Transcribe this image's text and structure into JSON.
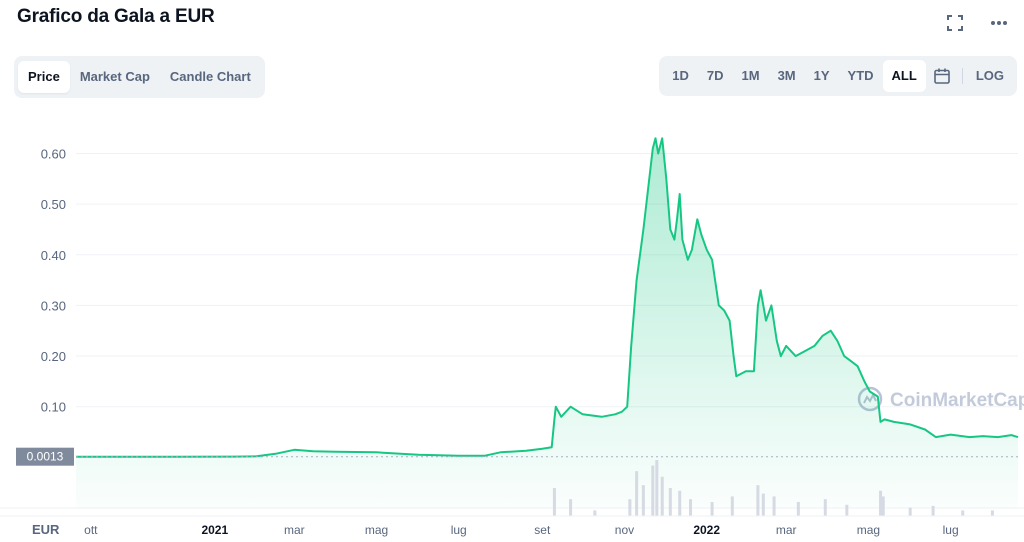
{
  "title": "Grafico da Gala a EUR",
  "icons": {
    "fullscreen": "fullscreen-icon",
    "more": "more-icon",
    "calendar": "calendar-icon"
  },
  "tabs": [
    {
      "label": "Price",
      "active": true
    },
    {
      "label": "Market Cap",
      "active": false
    },
    {
      "label": "Candle Chart",
      "active": false
    }
  ],
  "ranges": [
    {
      "label": "1D",
      "active": false
    },
    {
      "label": "7D",
      "active": false
    },
    {
      "label": "1M",
      "active": false
    },
    {
      "label": "3M",
      "active": false
    },
    {
      "label": "1Y",
      "active": false
    },
    {
      "label": "YTD",
      "active": false
    },
    {
      "label": "ALL",
      "active": true
    }
  ],
  "log_label": "LOG",
  "watermark": "CoinMarketCap",
  "colors": {
    "line": "#16c784",
    "accent": "#3861fb",
    "price_tag": "#808a9d"
  },
  "chart_data": {
    "type": "area",
    "currency_label": "EUR",
    "price_tag": "0.0013",
    "ylim": [
      -0.1,
      0.67
    ],
    "y_ticks": [
      {
        "value": 0.6,
        "label": "0.60"
      },
      {
        "value": 0.5,
        "label": "0.50"
      },
      {
        "value": 0.4,
        "label": "0.40"
      },
      {
        "value": 0.3,
        "label": "0.30"
      },
      {
        "value": 0.2,
        "label": "0.20"
      },
      {
        "value": 0.1,
        "label": "0.10"
      }
    ],
    "xlim": [
      "2020-09-20",
      "2022-08-20"
    ],
    "x_ticks": [
      {
        "date": "2020-10-01",
        "label": "ott",
        "bold": false
      },
      {
        "date": "2021-01-01",
        "label": "2021",
        "bold": true
      },
      {
        "date": "2021-03-01",
        "label": "mar",
        "bold": false
      },
      {
        "date": "2021-05-01",
        "label": "mag",
        "bold": false
      },
      {
        "date": "2021-07-01",
        "label": "lug",
        "bold": false
      },
      {
        "date": "2021-09-01",
        "label": "set",
        "bold": false
      },
      {
        "date": "2021-11-01",
        "label": "nov",
        "bold": false
      },
      {
        "date": "2022-01-01",
        "label": "2022",
        "bold": true
      },
      {
        "date": "2022-03-01",
        "label": "mar",
        "bold": false
      },
      {
        "date": "2022-05-01",
        "label": "mag",
        "bold": false
      },
      {
        "date": "2022-07-01",
        "label": "lug",
        "bold": false
      }
    ],
    "series": [
      {
        "points": [
          [
            "2020-09-20",
            0.0013
          ],
          [
            "2020-12-01",
            0.0013
          ],
          [
            "2021-01-15",
            0.0015
          ],
          [
            "2021-02-01",
            0.002
          ],
          [
            "2021-02-15",
            0.007
          ],
          [
            "2021-03-01",
            0.015
          ],
          [
            "2021-03-15",
            0.012
          ],
          [
            "2021-04-01",
            0.011
          ],
          [
            "2021-05-01",
            0.01
          ],
          [
            "2021-06-01",
            0.005
          ],
          [
            "2021-07-01",
            0.003
          ],
          [
            "2021-07-20",
            0.003
          ],
          [
            "2021-08-01",
            0.01
          ],
          [
            "2021-08-20",
            0.013
          ],
          [
            "2021-09-01",
            0.017
          ],
          [
            "2021-09-08",
            0.02
          ],
          [
            "2021-09-10",
            0.075
          ],
          [
            "2021-09-11",
            0.1
          ],
          [
            "2021-09-15",
            0.08
          ],
          [
            "2021-09-22",
            0.1
          ],
          [
            "2021-10-01",
            0.085
          ],
          [
            "2021-10-15",
            0.08
          ],
          [
            "2021-10-25",
            0.085
          ],
          [
            "2021-10-30",
            0.09
          ],
          [
            "2021-11-03",
            0.1
          ],
          [
            "2021-11-06",
            0.22
          ],
          [
            "2021-11-10",
            0.35
          ],
          [
            "2021-11-15",
            0.45
          ],
          [
            "2021-11-22",
            0.61
          ],
          [
            "2021-11-24",
            0.63
          ],
          [
            "2021-11-26",
            0.6
          ],
          [
            "2021-11-29",
            0.63
          ],
          [
            "2021-12-02",
            0.55
          ],
          [
            "2021-12-05",
            0.45
          ],
          [
            "2021-12-08",
            0.43
          ],
          [
            "2021-12-10",
            0.47
          ],
          [
            "2021-12-12",
            0.52
          ],
          [
            "2021-12-14",
            0.43
          ],
          [
            "2021-12-18",
            0.39
          ],
          [
            "2021-12-21",
            0.41
          ],
          [
            "2021-12-25",
            0.47
          ],
          [
            "2021-12-28",
            0.44
          ],
          [
            "2022-01-01",
            0.41
          ],
          [
            "2022-01-05",
            0.39
          ],
          [
            "2022-01-10",
            0.3
          ],
          [
            "2022-01-14",
            0.29
          ],
          [
            "2022-01-18",
            0.27
          ],
          [
            "2022-01-21",
            0.2
          ],
          [
            "2022-01-23",
            0.16
          ],
          [
            "2022-01-30",
            0.17
          ],
          [
            "2022-02-05",
            0.17
          ],
          [
            "2022-02-08",
            0.3
          ],
          [
            "2022-02-10",
            0.33
          ],
          [
            "2022-02-14",
            0.27
          ],
          [
            "2022-02-18",
            0.3
          ],
          [
            "2022-02-22",
            0.23
          ],
          [
            "2022-02-25",
            0.2
          ],
          [
            "2022-03-01",
            0.22
          ],
          [
            "2022-03-08",
            0.2
          ],
          [
            "2022-03-15",
            0.21
          ],
          [
            "2022-03-22",
            0.22
          ],
          [
            "2022-03-28",
            0.24
          ],
          [
            "2022-04-03",
            0.25
          ],
          [
            "2022-04-08",
            0.23
          ],
          [
            "2022-04-13",
            0.2
          ],
          [
            "2022-04-18",
            0.19
          ],
          [
            "2022-04-23",
            0.18
          ],
          [
            "2022-04-28",
            0.15
          ],
          [
            "2022-05-02",
            0.13
          ],
          [
            "2022-05-08",
            0.12
          ],
          [
            "2022-05-10",
            0.07
          ],
          [
            "2022-05-13",
            0.075
          ],
          [
            "2022-05-20",
            0.07
          ],
          [
            "2022-06-01",
            0.065
          ],
          [
            "2022-06-12",
            0.055
          ],
          [
            "2022-06-20",
            0.04
          ],
          [
            "2022-07-01",
            0.045
          ],
          [
            "2022-07-15",
            0.04
          ],
          [
            "2022-07-25",
            0.042
          ],
          [
            "2022-08-05",
            0.04
          ],
          [
            "2022-08-15",
            0.044
          ],
          [
            "2022-08-20",
            0.04
          ]
        ]
      }
    ],
    "volume": [
      [
        "2021-09-10",
        0.5
      ],
      [
        "2021-09-22",
        0.3
      ],
      [
        "2021-10-10",
        0.1
      ],
      [
        "2021-11-05",
        0.3
      ],
      [
        "2021-11-10",
        0.8
      ],
      [
        "2021-11-15",
        0.55
      ],
      [
        "2021-11-22",
        0.9
      ],
      [
        "2021-11-25",
        1.0
      ],
      [
        "2021-11-29",
        0.7
      ],
      [
        "2021-12-05",
        0.5
      ],
      [
        "2021-12-12",
        0.45
      ],
      [
        "2021-12-20",
        0.3
      ],
      [
        "2022-01-05",
        0.25
      ],
      [
        "2022-01-20",
        0.35
      ],
      [
        "2022-02-08",
        0.55
      ],
      [
        "2022-02-12",
        0.4
      ],
      [
        "2022-02-20",
        0.35
      ],
      [
        "2022-03-10",
        0.25
      ],
      [
        "2022-03-30",
        0.3
      ],
      [
        "2022-04-15",
        0.2
      ],
      [
        "2022-05-10",
        0.45
      ],
      [
        "2022-05-12",
        0.35
      ],
      [
        "2022-06-01",
        0.15
      ],
      [
        "2022-06-18",
        0.18
      ],
      [
        "2022-07-10",
        0.1
      ],
      [
        "2022-08-01",
        0.1
      ]
    ]
  }
}
